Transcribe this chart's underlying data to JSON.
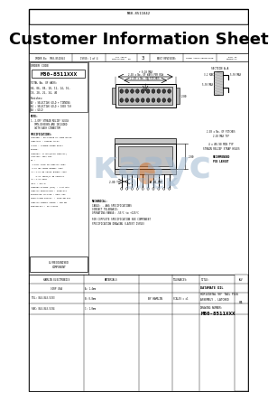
{
  "bg_color": "#ffffff",
  "line_color": "#000000",
  "text_color": "#000000",
  "gray_fill": "#d0d0d0",
  "light_gray": "#e8e8e8",
  "dark_fill": "#404040",
  "watermark_blue": "#a0b8d0",
  "watermark_orange": "#d06010",
  "main_title": "Customer Information Sheet",
  "part_number": "M80-8511XXX",
  "order_no_label": "ORDER No:",
  "order_no_value": "M80-8511042",
  "title_line1": "DATAMATE DIL",
  "title_line2": "HORIZONTAL 90° TAIL PLUG",
  "title_line3": "ASSEMBLY - LATCHED",
  "part_bottom": "M80-8511XXX"
}
